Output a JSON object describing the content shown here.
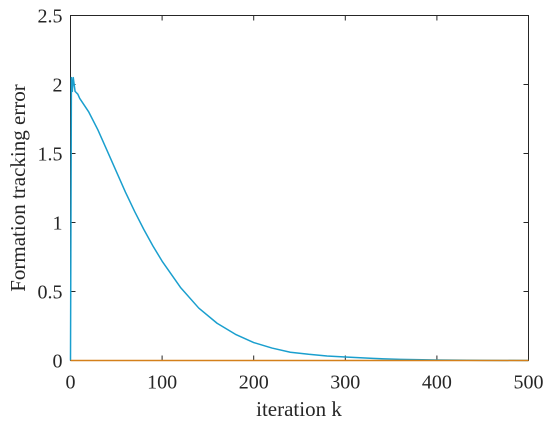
{
  "chart_data": {
    "type": "line",
    "title": "",
    "xlabel": "iteration k",
    "ylabel": "Formation tracking error",
    "xlim": [
      0,
      500
    ],
    "ylim": [
      0,
      2.5
    ],
    "xticks": [
      0,
      100,
      200,
      300,
      400,
      500
    ],
    "xtick_labels": [
      "0",
      "100",
      "200",
      "300",
      "400",
      "500"
    ],
    "yticks": [
      0,
      0.5,
      1,
      1.5,
      2,
      2.5
    ],
    "ytick_labels": [
      "0",
      "0.5",
      "1",
      "1.5",
      "2",
      "2.5"
    ],
    "grid": false,
    "box": true,
    "series": [
      {
        "color": "#1a9fce",
        "x": [
          0,
          1,
          2,
          3,
          5,
          8,
          10,
          15,
          20,
          30,
          40,
          50,
          60,
          70,
          80,
          90,
          100,
          120,
          140,
          160,
          180,
          200,
          220,
          240,
          260,
          280,
          300,
          330,
          360,
          400,
          450,
          500
        ],
        "y": [
          0,
          2.05,
          1.95,
          2.05,
          1.95,
          1.93,
          1.9,
          1.85,
          1.8,
          1.67,
          1.52,
          1.37,
          1.22,
          1.08,
          0.95,
          0.83,
          0.72,
          0.53,
          0.38,
          0.27,
          0.19,
          0.13,
          0.09,
          0.06,
          0.045,
          0.033,
          0.025,
          0.015,
          0.008,
          0.004,
          0.001,
          0.0
        ]
      },
      {
        "color": "#d4801a",
        "x": [
          0,
          500
        ],
        "y": [
          0,
          0
        ]
      }
    ]
  }
}
